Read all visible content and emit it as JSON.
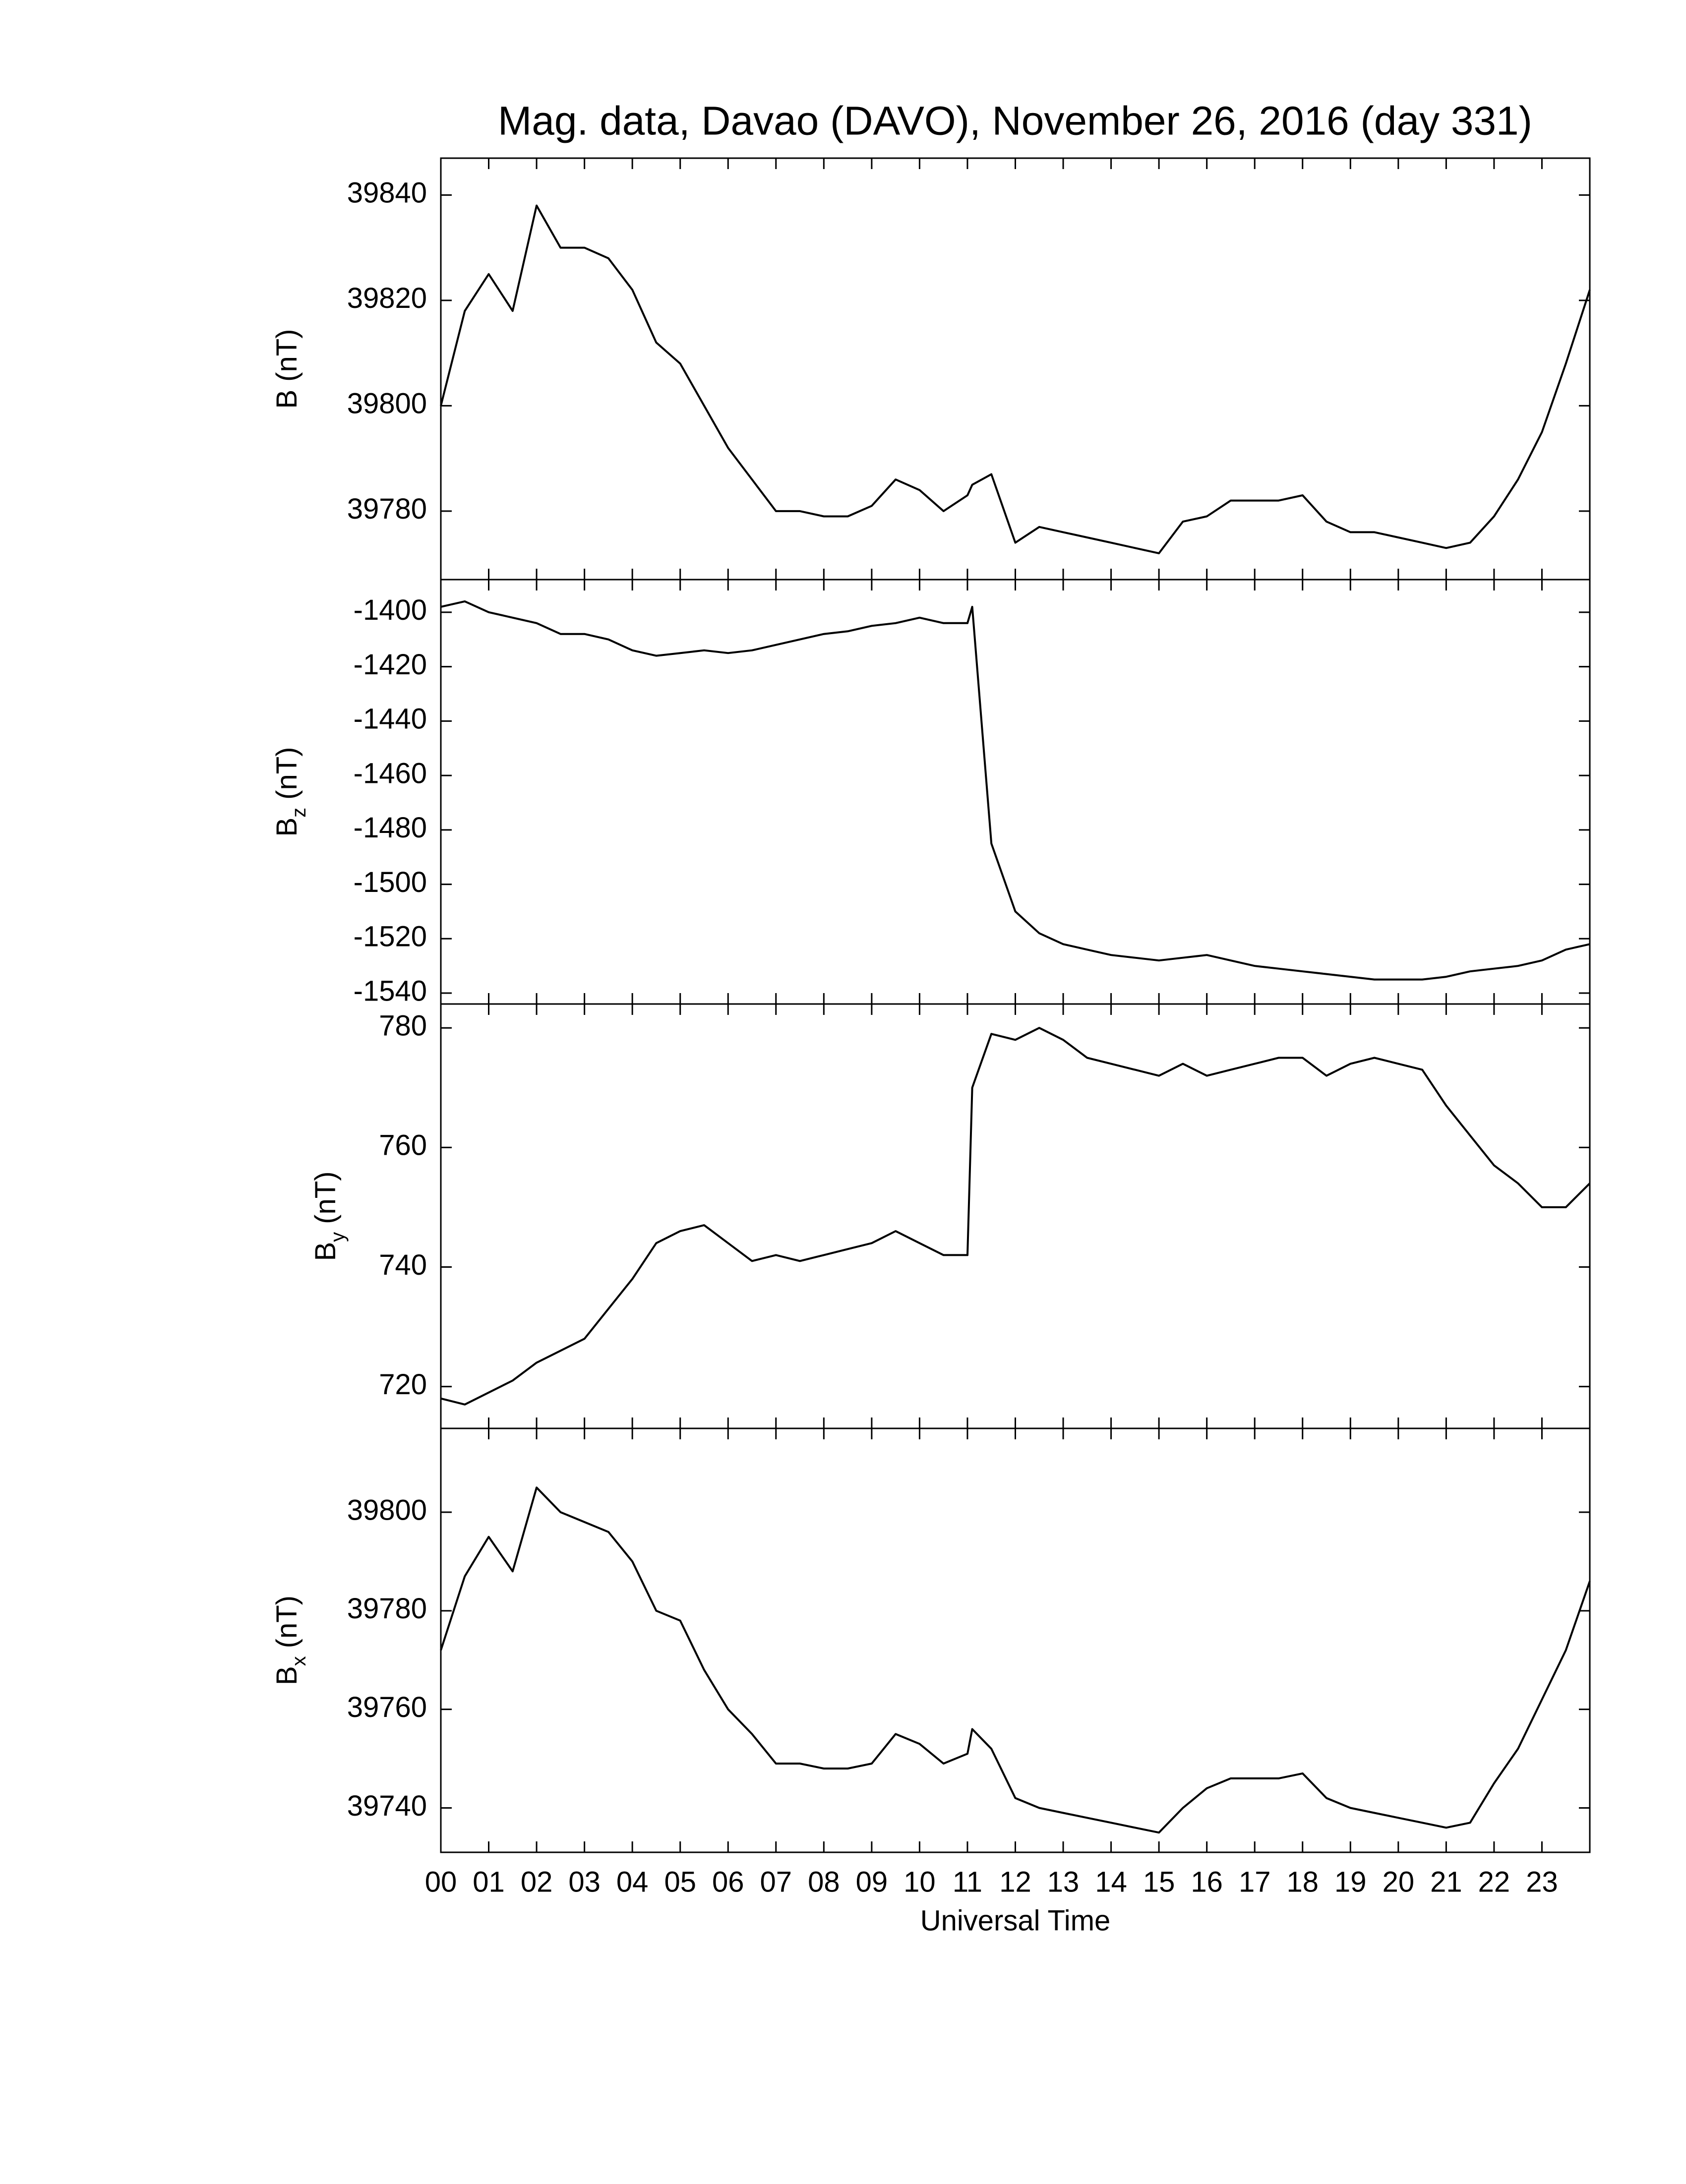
{
  "chart_data": [
    {
      "type": "line",
      "title": "Mag. data, Davao (DAVO), November 26, 2016 (day 331)",
      "ylabel": "B",
      "ylabel_unit": "(nT)",
      "x": [
        0,
        0.5,
        1,
        1.5,
        2,
        2.5,
        3,
        3.5,
        4,
        4.5,
        5,
        5.5,
        6,
        6.5,
        7,
        7.5,
        8,
        8.5,
        9,
        9.5,
        10,
        10.5,
        11,
        11.1,
        11.5,
        12,
        12.5,
        13,
        13.5,
        14,
        14.5,
        15,
        15.5,
        16,
        16.5,
        17,
        17.5,
        18,
        18.5,
        19,
        19.5,
        20,
        20.5,
        21,
        21.5,
        22,
        22.5,
        23,
        23.5,
        24
      ],
      "series": [
        {
          "color": "#000000",
          "values": [
            39800,
            39818,
            39825,
            39818,
            39838,
            39830,
            39830,
            39828,
            39822,
            39812,
            39808,
            39800,
            39792,
            39786,
            39780,
            39780,
            39779,
            39779,
            39781,
            39786,
            39784,
            39780,
            39783,
            39785,
            39787,
            39774,
            39777,
            39776,
            39775,
            39774,
            39773,
            39772,
            39778,
            39779,
            39782,
            39782,
            39782,
            39783,
            39778,
            39776,
            39776,
            39775,
            39774,
            39773,
            39774,
            39779,
            39786,
            39795,
            39808,
            39822
          ]
        }
      ],
      "xlim": [
        0,
        24
      ],
      "ylim": [
        39767,
        39847
      ],
      "yticks": [
        39780,
        39800,
        39820,
        39840
      ]
    },
    {
      "type": "line",
      "ylabel": "B",
      "ylabel_subscript": "z",
      "ylabel_unit": "(nT)",
      "x": [
        0,
        0.5,
        1,
        1.5,
        2,
        2.5,
        3,
        3.5,
        4,
        4.5,
        5,
        5.5,
        6,
        6.5,
        7,
        7.5,
        8,
        8.5,
        9,
        9.5,
        10,
        10.5,
        11,
        11.1,
        11.5,
        12,
        12.5,
        13,
        13.5,
        14,
        14.5,
        15,
        15.5,
        16,
        16.5,
        17,
        17.5,
        18,
        18.5,
        19,
        19.5,
        20,
        20.5,
        21,
        21.5,
        22,
        22.5,
        23,
        23.5,
        24
      ],
      "series": [
        {
          "color": "#000000",
          "values": [
            -1398,
            -1396,
            -1400,
            -1402,
            -1404,
            -1408,
            -1408,
            -1410,
            -1414,
            -1416,
            -1415,
            -1414,
            -1415,
            -1414,
            -1412,
            -1410,
            -1408,
            -1407,
            -1405,
            -1404,
            -1402,
            -1404,
            -1404,
            -1398,
            -1485,
            -1510,
            -1518,
            -1522,
            -1524,
            -1526,
            -1527,
            -1528,
            -1527,
            -1526,
            -1528,
            -1530,
            -1531,
            -1532,
            -1533,
            -1534,
            -1535,
            -1535,
            -1535,
            -1534,
            -1532,
            -1531,
            -1530,
            -1528,
            -1524,
            -1522
          ]
        }
      ],
      "xlim": [
        0,
        24
      ],
      "ylim": [
        -1544,
        -1388
      ],
      "yticks": [
        -1540,
        -1520,
        -1500,
        -1480,
        -1460,
        -1440,
        -1420,
        -1400
      ]
    },
    {
      "type": "line",
      "ylabel": "B",
      "ylabel_subscript": "y",
      "ylabel_unit": "(nT)",
      "x": [
        0,
        0.5,
        1,
        1.5,
        2,
        2.5,
        3,
        3.5,
        4,
        4.5,
        5,
        5.5,
        6,
        6.5,
        7,
        7.5,
        8,
        8.5,
        9,
        9.5,
        10,
        10.5,
        11,
        11.1,
        11.5,
        12,
        12.5,
        13,
        13.5,
        14,
        14.5,
        15,
        15.5,
        16,
        16.5,
        17,
        17.5,
        18,
        18.5,
        19,
        19.5,
        20,
        20.5,
        21,
        21.5,
        22,
        22.5,
        23,
        23.5,
        24
      ],
      "series": [
        {
          "color": "#000000",
          "values": [
            718,
            717,
            719,
            721,
            724,
            726,
            728,
            733,
            738,
            744,
            746,
            747,
            744,
            741,
            742,
            741,
            742,
            743,
            744,
            746,
            744,
            742,
            742,
            770,
            779,
            778,
            780,
            778,
            775,
            774,
            773,
            772,
            774,
            772,
            773,
            774,
            775,
            775,
            772,
            774,
            775,
            774,
            773,
            767,
            762,
            757,
            754,
            750,
            750,
            754
          ]
        }
      ],
      "xlim": [
        0,
        24
      ],
      "ylim": [
        713,
        784
      ],
      "yticks": [
        720,
        740,
        760,
        780
      ]
    },
    {
      "type": "line",
      "ylabel": "B",
      "ylabel_subscript": "x",
      "ylabel_unit": "(nT)",
      "xlabel": "Universal Time",
      "x": [
        0,
        0.5,
        1,
        1.5,
        2,
        2.5,
        3,
        3.5,
        4,
        4.5,
        5,
        5.5,
        6,
        6.5,
        7,
        7.5,
        8,
        8.5,
        9,
        9.5,
        10,
        10.5,
        11,
        11.1,
        11.5,
        12,
        12.5,
        13,
        13.5,
        14,
        14.5,
        15,
        15.5,
        16,
        16.5,
        17,
        17.5,
        18,
        18.5,
        19,
        19.5,
        20,
        20.5,
        21,
        21.5,
        22,
        22.5,
        23,
        23.5,
        24
      ],
      "series": [
        {
          "color": "#000000",
          "values": [
            39772,
            39787,
            39795,
            39788,
            39805,
            39800,
            39798,
            39796,
            39790,
            39780,
            39778,
            39768,
            39760,
            39755,
            39749,
            39749,
            39748,
            39748,
            39749,
            39755,
            39753,
            39749,
            39751,
            39756,
            39752,
            39742,
            39740,
            39739,
            39738,
            39737,
            39736,
            39735,
            39740,
            39744,
            39746,
            39746,
            39746,
            39747,
            39742,
            39740,
            39739,
            39738,
            39737,
            39736,
            39737,
            39745,
            39752,
            39762,
            39772,
            39786
          ]
        }
      ],
      "xlim": [
        0,
        24
      ],
      "ylim": [
        39731,
        39817
      ],
      "yticks": [
        39740,
        39760,
        39780,
        39800
      ],
      "xticks": [
        {
          "value": 0,
          "label": "00"
        },
        {
          "value": 1,
          "label": "01"
        },
        {
          "value": 2,
          "label": "02"
        },
        {
          "value": 3,
          "label": "03"
        },
        {
          "value": 4,
          "label": "04"
        },
        {
          "value": 5,
          "label": "05"
        },
        {
          "value": 6,
          "label": "06"
        },
        {
          "value": 7,
          "label": "07"
        },
        {
          "value": 8,
          "label": "08"
        },
        {
          "value": 9,
          "label": "09"
        },
        10,
        11,
        12,
        13,
        14,
        15,
        16,
        17,
        18,
        19,
        20,
        21,
        22,
        23
      ]
    }
  ]
}
